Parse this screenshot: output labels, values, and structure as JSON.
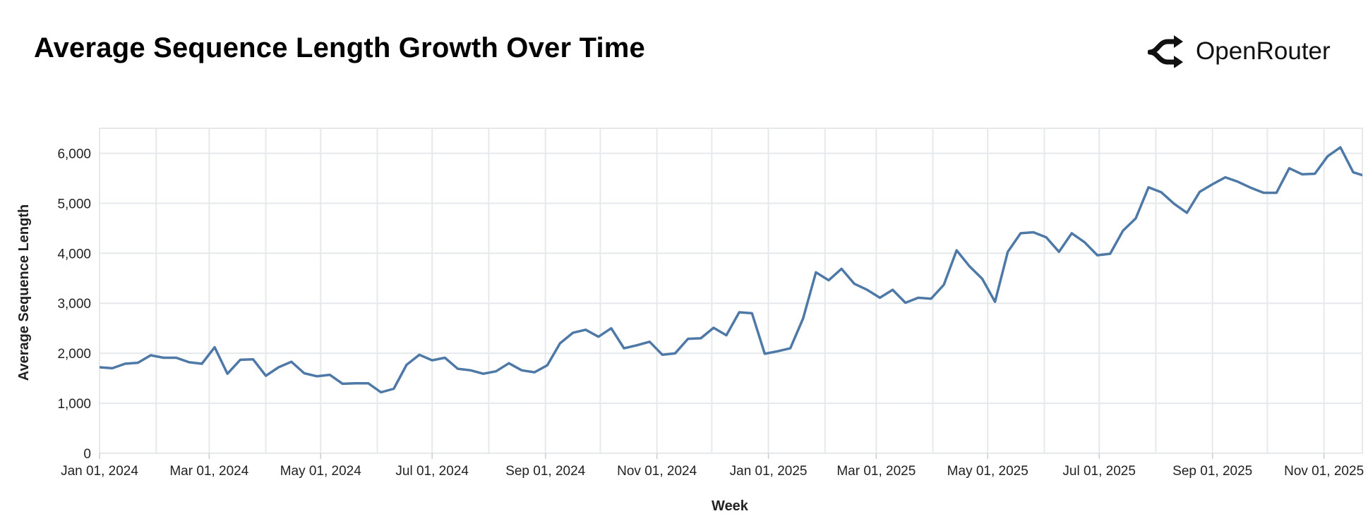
{
  "header": {
    "title": "Average Sequence Length Growth Over Time",
    "brand_name": "OpenRouter",
    "brand_icon": "openrouter-logo-icon"
  },
  "chart_data": {
    "type": "line",
    "xlabel": "Week",
    "ylabel": "Average Sequence Length",
    "x_start": "2024-01-01",
    "x_end": "2025-11-22",
    "x_ticks": [
      "Jan 01, 2024",
      "Mar 01, 2024",
      "May 01, 2024",
      "Jul 01, 2024",
      "Sep 01, 2024",
      "Nov 01, 2024",
      "Jan 01, 2025",
      "Mar 01, 2025",
      "May 01, 2025",
      "Jul 01, 2025",
      "Sep 01, 2025",
      "Nov 01, 2025"
    ],
    "y_ticks": [
      "0",
      "1,000",
      "2,000",
      "3,000",
      "4,000",
      "5,000",
      "6,000"
    ],
    "ylim": [
      0,
      6500
    ],
    "grid": true,
    "line_color": "#4e79a7",
    "grid_color": "#e6e9ec",
    "series": [
      {
        "x": [
          "2024-01-01",
          "2024-01-08",
          "2024-01-15",
          "2024-01-22",
          "2024-01-29",
          "2024-02-05",
          "2024-02-12",
          "2024-02-19",
          "2024-02-26",
          "2024-03-04",
          "2024-03-11",
          "2024-03-18",
          "2024-03-25",
          "2024-04-01",
          "2024-04-08",
          "2024-04-15",
          "2024-04-22",
          "2024-04-29",
          "2024-05-06",
          "2024-05-13",
          "2024-05-20",
          "2024-05-27",
          "2024-06-03",
          "2024-06-10",
          "2024-06-17",
          "2024-06-24",
          "2024-07-01",
          "2024-07-08",
          "2024-07-15",
          "2024-07-22",
          "2024-07-29",
          "2024-08-05",
          "2024-08-12",
          "2024-08-19",
          "2024-08-26",
          "2024-09-02",
          "2024-09-09",
          "2024-09-16",
          "2024-09-23",
          "2024-09-30",
          "2024-10-07",
          "2024-10-14",
          "2024-10-21",
          "2024-10-28",
          "2024-11-04",
          "2024-11-11",
          "2024-11-18",
          "2024-11-25",
          "2024-12-02",
          "2024-12-09",
          "2024-12-16",
          "2024-12-23",
          "2024-12-30",
          "2025-01-06",
          "2025-01-13",
          "2025-01-20",
          "2025-01-27",
          "2025-02-03",
          "2025-02-10",
          "2025-02-17",
          "2025-02-24",
          "2025-03-03",
          "2025-03-10",
          "2025-03-17",
          "2025-03-24",
          "2025-03-31",
          "2025-04-07",
          "2025-04-14",
          "2025-04-21",
          "2025-04-28",
          "2025-05-05",
          "2025-05-12",
          "2025-05-19",
          "2025-05-26",
          "2025-06-02",
          "2025-06-09",
          "2025-06-16",
          "2025-06-23",
          "2025-06-30",
          "2025-07-07",
          "2025-07-14",
          "2025-07-21",
          "2025-07-28",
          "2025-08-04",
          "2025-08-11",
          "2025-08-18",
          "2025-08-25",
          "2025-09-01",
          "2025-09-08",
          "2025-09-15",
          "2025-09-22",
          "2025-09-29",
          "2025-10-06",
          "2025-10-13",
          "2025-10-20",
          "2025-10-27",
          "2025-11-03",
          "2025-11-10",
          "2025-11-17",
          "2025-11-24"
        ],
        "values": [
          1720,
          1700,
          1790,
          1810,
          1960,
          1910,
          1910,
          1820,
          1790,
          2120,
          1590,
          1870,
          1880,
          1550,
          1720,
          1830,
          1600,
          1540,
          1570,
          1390,
          1400,
          1400,
          1220,
          1290,
          1770,
          1970,
          1860,
          1910,
          1690,
          1660,
          1590,
          1640,
          1800,
          1660,
          1620,
          1760,
          2200,
          2410,
          2470,
          2330,
          2500,
          2100,
          2160,
          2230,
          1970,
          2000,
          2290,
          2300,
          2510,
          2360,
          2820,
          2800,
          1990,
          2040,
          2100,
          2700,
          3620,
          3460,
          3690,
          3390,
          3270,
          3110,
          3270,
          3010,
          3110,
          3090,
          3370,
          4060,
          3740,
          3490,
          3030,
          4030,
          4400,
          4420,
          4320,
          4030,
          4400,
          4220,
          3960,
          3990,
          4450,
          4700,
          5320,
          5220,
          4990,
          4810,
          5230,
          5380,
          5520,
          5430,
          5310,
          5210,
          5210,
          5700,
          5580,
          5590,
          5940,
          6120,
          5620,
          5540
        ]
      }
    ]
  }
}
